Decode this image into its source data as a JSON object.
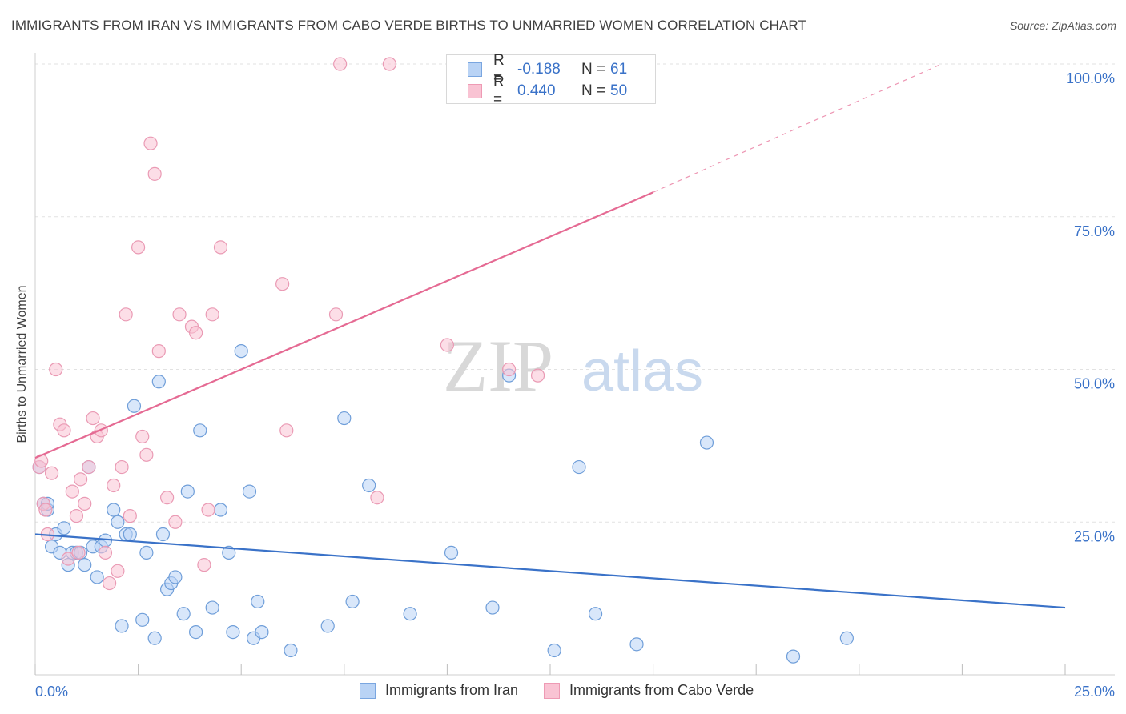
{
  "title": "IMMIGRANTS FROM IRAN VS IMMIGRANTS FROM CABO VERDE BIRTHS TO UNMARRIED WOMEN CORRELATION CHART",
  "source": "Source: ZipAtlas.com",
  "watermark": {
    "zip": "ZIP",
    "atlas": "atlas"
  },
  "legend": {
    "r_label": "R =",
    "n_label": "N =",
    "series": [
      {
        "r": "-0.188",
        "n": "61",
        "fill": "#b9d3f5",
        "stroke": "#7aa6e0"
      },
      {
        "r": "0.440",
        "n": "50",
        "fill": "#f9c3d3",
        "stroke": "#ee9ab4"
      }
    ]
  },
  "chart_data": {
    "type": "scatter",
    "title": "IMMIGRANTS FROM IRAN VS IMMIGRANTS FROM CABO VERDE BIRTHS TO UNMARRIED WOMEN CORRELATION CHART",
    "xlabel": "",
    "ylabel": "Births to Unmarried Women",
    "xlim": [
      0,
      25
    ],
    "ylim": [
      0,
      100
    ],
    "x_tick_labels": [
      "0.0%",
      "25.0%"
    ],
    "y_tick_labels": [
      "25.0%",
      "50.0%",
      "75.0%",
      "100.0%"
    ],
    "y_ticks": [
      25,
      50,
      75,
      100
    ],
    "grid": true,
    "legend_position": "top-center",
    "series": [
      {
        "name": "Immigrants from Iran",
        "color": "#3a72c8",
        "fill": "#b9d3f5",
        "trend": {
          "x0": 0,
          "y0": 23.0,
          "x1": 25,
          "y1": 11.0,
          "dashed_from": null
        },
        "points": [
          [
            0.1,
            34
          ],
          [
            0.2,
            28
          ],
          [
            0.3,
            27
          ],
          [
            0.4,
            21
          ],
          [
            0.5,
            23
          ],
          [
            0.6,
            20
          ],
          [
            0.7,
            24
          ],
          [
            0.8,
            18
          ],
          [
            0.9,
            20
          ],
          [
            1.0,
            20
          ],
          [
            1.1,
            20
          ],
          [
            1.2,
            18
          ],
          [
            1.3,
            34
          ],
          [
            1.4,
            21
          ],
          [
            1.5,
            16
          ],
          [
            1.6,
            21
          ],
          [
            1.7,
            22
          ],
          [
            1.9,
            27
          ],
          [
            2.0,
            25
          ],
          [
            2.1,
            8
          ],
          [
            2.2,
            23
          ],
          [
            2.3,
            23
          ],
          [
            2.4,
            44
          ],
          [
            2.6,
            9
          ],
          [
            2.7,
            20
          ],
          [
            2.9,
            6
          ],
          [
            3.0,
            48
          ],
          [
            3.1,
            23
          ],
          [
            3.2,
            14
          ],
          [
            3.3,
            15
          ],
          [
            3.4,
            16
          ],
          [
            3.6,
            10
          ],
          [
            3.7,
            30
          ],
          [
            3.9,
            7
          ],
          [
            4.0,
            40
          ],
          [
            4.3,
            11
          ],
          [
            4.5,
            27
          ],
          [
            4.7,
            20
          ],
          [
            4.8,
            7
          ],
          [
            5.0,
            53
          ],
          [
            5.2,
            30
          ],
          [
            5.3,
            6
          ],
          [
            5.4,
            12
          ],
          [
            5.5,
            7
          ],
          [
            6.2,
            4
          ],
          [
            7.1,
            8
          ],
          [
            7.5,
            42
          ],
          [
            7.7,
            12
          ],
          [
            8.1,
            31
          ],
          [
            9.1,
            10
          ],
          [
            10.1,
            20
          ],
          [
            11.1,
            11
          ],
          [
            11.5,
            49
          ],
          [
            12.6,
            4
          ],
          [
            13.2,
            34
          ],
          [
            13.6,
            10
          ],
          [
            14.6,
            5
          ],
          [
            16.3,
            38
          ],
          [
            18.4,
            3
          ],
          [
            19.7,
            6
          ],
          [
            0.3,
            28
          ]
        ]
      },
      {
        "name": "Immigrants from Cabo Verde",
        "color": "#e56a93",
        "fill": "#f9c3d3",
        "trend": {
          "x0": 0,
          "y0": 35.5,
          "x1": 15.0,
          "y1": 79.0,
          "dashed_to_x": 22.0,
          "dashed_to_y": 100.0
        },
        "points": [
          [
            0.1,
            34
          ],
          [
            0.2,
            28
          ],
          [
            0.3,
            23
          ],
          [
            0.4,
            33
          ],
          [
            0.5,
            50
          ],
          [
            0.6,
            41
          ],
          [
            0.7,
            40
          ],
          [
            0.8,
            19
          ],
          [
            0.9,
            30
          ],
          [
            1.0,
            26
          ],
          [
            1.1,
            32
          ],
          [
            1.2,
            28
          ],
          [
            1.3,
            34
          ],
          [
            1.4,
            42
          ],
          [
            1.5,
            39
          ],
          [
            1.6,
            40
          ],
          [
            1.7,
            20
          ],
          [
            1.8,
            15
          ],
          [
            1.9,
            31
          ],
          [
            2.0,
            17
          ],
          [
            2.1,
            34
          ],
          [
            2.2,
            59
          ],
          [
            2.3,
            26
          ],
          [
            2.5,
            70
          ],
          [
            2.6,
            39
          ],
          [
            2.7,
            36
          ],
          [
            2.8,
            87
          ],
          [
            2.9,
            82
          ],
          [
            3.0,
            53
          ],
          [
            3.2,
            29
          ],
          [
            3.4,
            25
          ],
          [
            3.5,
            59
          ],
          [
            3.8,
            57
          ],
          [
            3.9,
            56
          ],
          [
            4.1,
            18
          ],
          [
            4.2,
            27
          ],
          [
            4.3,
            59
          ],
          [
            4.5,
            70
          ],
          [
            6.0,
            64
          ],
          [
            6.1,
            40
          ],
          [
            7.3,
            59
          ],
          [
            7.4,
            100
          ],
          [
            8.3,
            29
          ],
          [
            8.6,
            100
          ],
          [
            10.0,
            54
          ],
          [
            11.5,
            50
          ],
          [
            12.2,
            49
          ],
          [
            0.15,
            35
          ],
          [
            0.25,
            27
          ],
          [
            1.05,
            20
          ]
        ]
      }
    ]
  }
}
